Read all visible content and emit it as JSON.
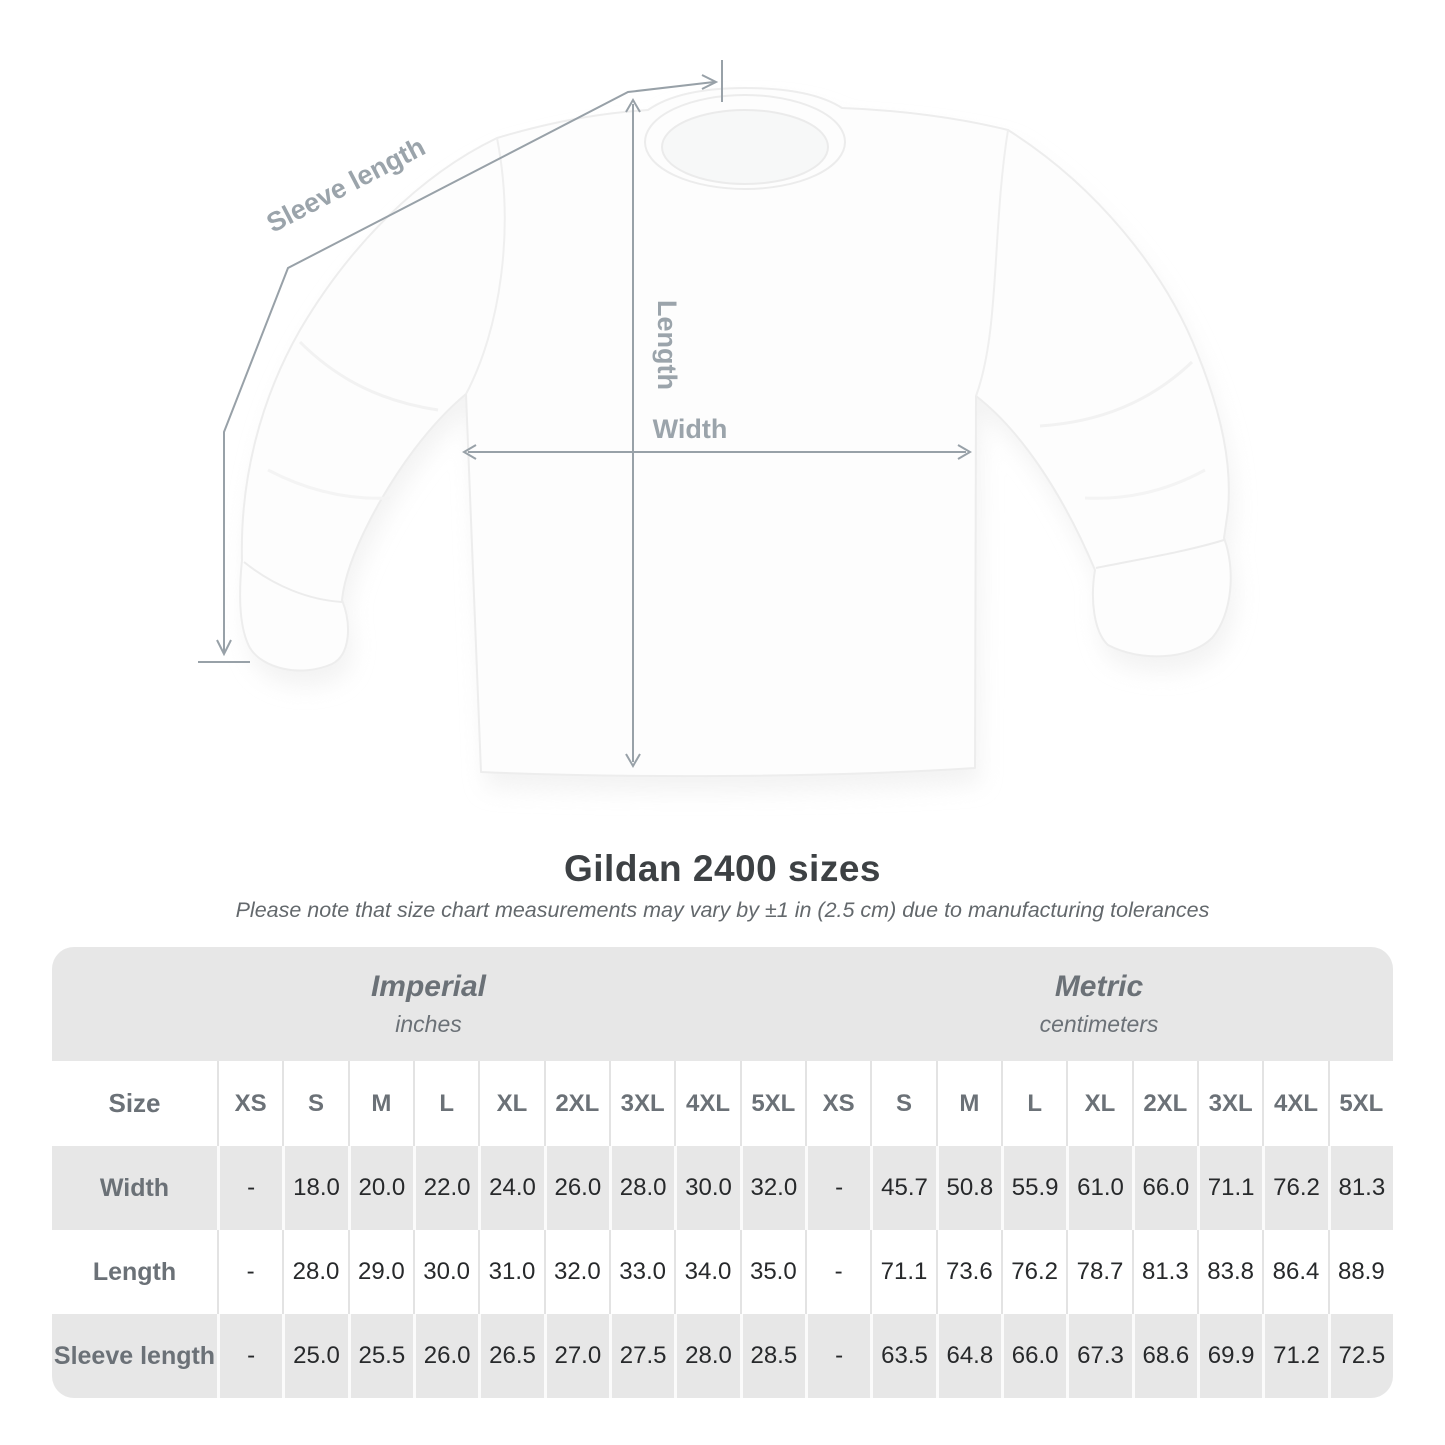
{
  "figure": {
    "labels": {
      "sleeve": "Sleeve length",
      "length": "Length",
      "width": "Width"
    }
  },
  "title": "Gildan 2400 sizes",
  "subtitle": "Please note that size chart measurements may vary by ±1 in (2.5 cm) due to manufacturing tolerances",
  "table": {
    "size_header": "Size",
    "groups": [
      {
        "label": "Imperial",
        "sublabel": "inches"
      },
      {
        "label": "Metric",
        "sublabel": "centimeters"
      }
    ],
    "sizes": [
      "XS",
      "S",
      "M",
      "L",
      "XL",
      "2XL",
      "3XL",
      "4XL",
      "5XL"
    ],
    "rows": [
      {
        "label": "Width",
        "imperial": [
          "-",
          "18.0",
          "20.0",
          "22.0",
          "24.0",
          "26.0",
          "28.0",
          "30.0",
          "32.0"
        ],
        "metric": [
          "-",
          "45.7",
          "50.8",
          "55.9",
          "61.0",
          "66.0",
          "71.1",
          "76.2",
          "81.3"
        ]
      },
      {
        "label": "Length",
        "imperial": [
          "-",
          "28.0",
          "29.0",
          "30.0",
          "31.0",
          "32.0",
          "33.0",
          "34.0",
          "35.0"
        ],
        "metric": [
          "-",
          "71.1",
          "73.6",
          "76.2",
          "78.7",
          "81.3",
          "83.8",
          "86.4",
          "88.9"
        ]
      },
      {
        "label": "Sleeve length",
        "imperial": [
          "-",
          "25.0",
          "25.5",
          "26.0",
          "26.5",
          "27.0",
          "27.5",
          "28.0",
          "28.5"
        ],
        "metric": [
          "-",
          "63.5",
          "64.8",
          "66.0",
          "67.3",
          "68.6",
          "69.9",
          "71.2",
          "72.5"
        ]
      }
    ]
  },
  "colors": {
    "band_gray": "#e7e7e7",
    "heading_text": "#6b7177",
    "value_text": "#27292b",
    "title_text": "#3d4144",
    "subtitle_text": "#63686c",
    "arrow_gray": "#98a1a8",
    "figure_label_gray": "#9ba4ab"
  }
}
